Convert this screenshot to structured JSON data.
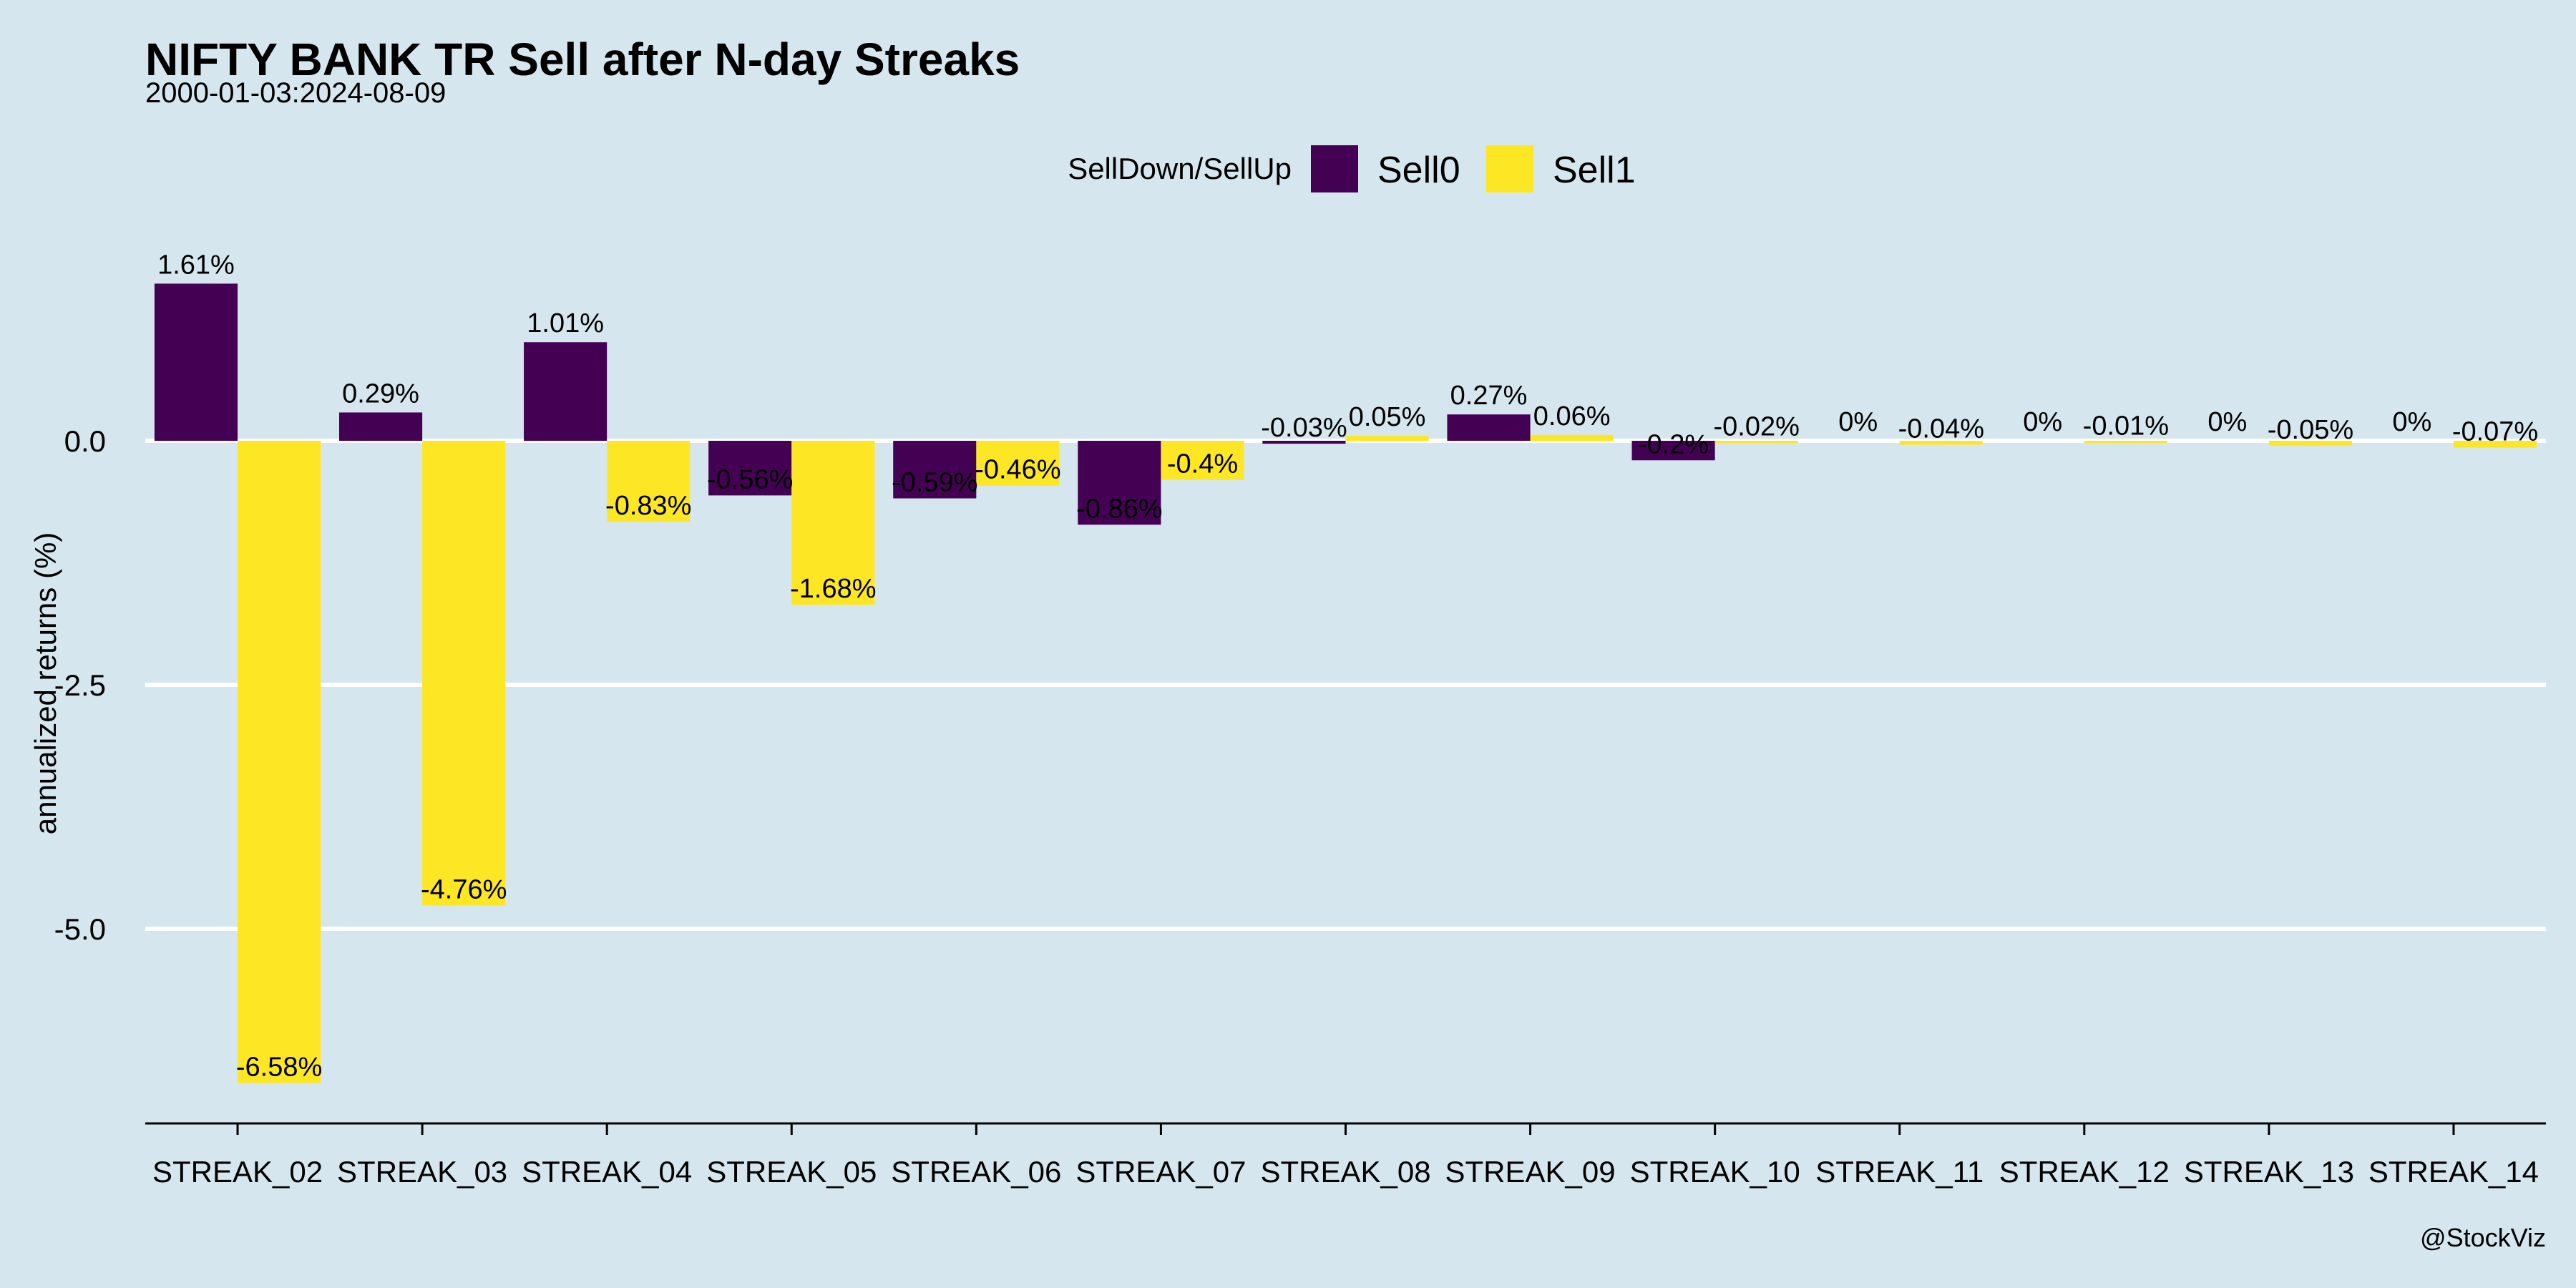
{
  "chart_data": {
    "type": "bar",
    "title": "NIFTY BANK TR Sell after N-day Streaks",
    "subtitle": "2000-01-03:2024-08-09",
    "xlabel": "",
    "ylabel": "annualized returns (%)",
    "ylim": [
      -7,
      2
    ],
    "yticks": [
      0,
      -2.5,
      -5
    ],
    "ytick_labels": [
      "0.0",
      "-2.5",
      "-5.0"
    ],
    "grid": true,
    "legend": {
      "title": "SellDown/SellUp",
      "position": "top-center"
    },
    "categories": [
      "STREAK_02",
      "STREAK_03",
      "STREAK_04",
      "STREAK_05",
      "STREAK_06",
      "STREAK_07",
      "STREAK_08",
      "STREAK_09",
      "STREAK_10",
      "STREAK_11",
      "STREAK_12",
      "STREAK_13",
      "STREAK_14"
    ],
    "series": [
      {
        "name": "Sell0",
        "color": "#440154",
        "values": [
          1.61,
          0.29,
          1.01,
          -0.56,
          -0.59,
          -0.86,
          -0.03,
          0.27,
          -0.2,
          0,
          0,
          0,
          0
        ],
        "labels": [
          "1.61%",
          "0.29%",
          "1.01%",
          "-0.56%",
          "-0.59%",
          "-0.86%",
          "-0.03%",
          "0.27%",
          "-0.2%",
          "0%",
          "0%",
          "0%",
          "0%"
        ]
      },
      {
        "name": "Sell1",
        "color": "#fde725",
        "values": [
          -6.58,
          -4.76,
          -0.83,
          -1.68,
          -0.46,
          -0.4,
          0.05,
          0.06,
          -0.02,
          -0.04,
          -0.01,
          -0.05,
          -0.07
        ],
        "labels": [
          "-6.58%",
          "-4.76%",
          "-0.83%",
          "-1.68%",
          "-0.46%",
          "-0.4%",
          "0.05%",
          "0.06%",
          "-0.02%",
          "-0.04%",
          "-0.01%",
          "-0.05%",
          "-0.07%"
        ]
      }
    ],
    "caption": "@StockViz"
  }
}
